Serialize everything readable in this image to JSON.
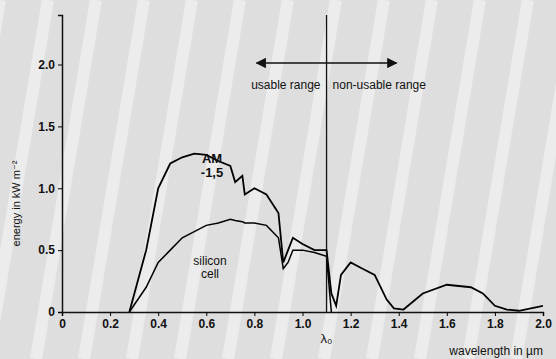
{
  "chart_data": {
    "type": "line",
    "x_label": "wavelength in µm",
    "y_label": "energy in kW m⁻²",
    "annotations": [
      {
        "text": "usable range"
      },
      {
        "text": "non-usable range"
      },
      {
        "text": "λ₀",
        "x": 1.1
      }
    ],
    "x": [
      0.28,
      0.35,
      0.4,
      0.45,
      0.5,
      0.55,
      0.6,
      0.65,
      0.7,
      0.72,
      0.75,
      0.76,
      0.8,
      0.85,
      0.9,
      0.92,
      0.94,
      0.96,
      1.0,
      1.05,
      1.1,
      1.12,
      1.14,
      1.16,
      1.2,
      1.25,
      1.3,
      1.35,
      1.38,
      1.42,
      1.5,
      1.6,
      1.7,
      1.75,
      1.8,
      1.85,
      1.9,
      2.0
    ],
    "series": [
      {
        "name": "AM -1,5",
        "color": "#000000",
        "line_style": "solid",
        "values": [
          0,
          0.5,
          1.0,
          1.2,
          1.25,
          1.28,
          1.27,
          1.22,
          1.18,
          1.05,
          1.1,
          0.95,
          1.0,
          0.95,
          0.8,
          0.4,
          0.5,
          0.6,
          0.55,
          0.5,
          0.5,
          0.15,
          0.05,
          0.3,
          0.4,
          0.35,
          0.3,
          0.1,
          0.03,
          0.02,
          0.15,
          0.22,
          0.2,
          0.15,
          0.05,
          0.02,
          0.01,
          0.05
        ]
      },
      {
        "name": "silicon cell",
        "color": "#000000",
        "line_style": "solid",
        "values": [
          0,
          0.2,
          0.4,
          0.5,
          0.6,
          0.65,
          0.7,
          0.72,
          0.75,
          0.74,
          0.73,
          0.72,
          0.72,
          0.7,
          0.6,
          0.35,
          0.4,
          0.5,
          0.5,
          0.48,
          0.45,
          0,
          null,
          null,
          null,
          null,
          null,
          null,
          null,
          null,
          null,
          null,
          null,
          null,
          null,
          null,
          null,
          null
        ]
      }
    ],
    "xlim": [
      0,
      2.0
    ],
    "ylim": [
      0,
      2.4
    ],
    "xticks": [
      0,
      0.2,
      0.4,
      0.6,
      0.8,
      {
        "value": 1.0,
        "label": "1.0"
      },
      1.2,
      1.4,
      1.6,
      1.8,
      {
        "value": 2.0,
        "label": "2.0"
      }
    ],
    "yticks": [
      0,
      0.5,
      {
        "value": 1,
        "label": "1.0"
      },
      1.5,
      {
        "value": 2,
        "label": "2.0"
      }
    ],
    "grid": false
  }
}
